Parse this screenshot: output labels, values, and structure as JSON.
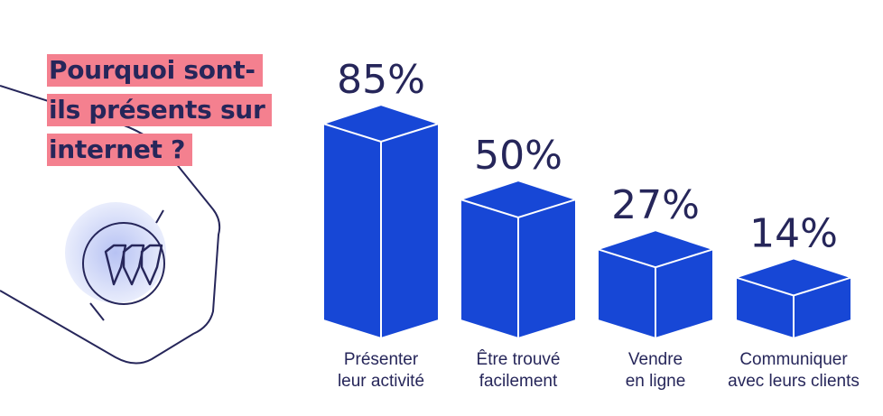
{
  "title_lines": [
    "Pourquoi sont-",
    "ils présents sur",
    "internet ?"
  ],
  "chart_data": {
    "type": "bar",
    "title": "Pourquoi sont-ils présents sur internet ?",
    "categories": [
      [
        "Présenter",
        "leur activité"
      ],
      [
        "Être trouvé",
        "facilement"
      ],
      [
        "Vendre",
        "en ligne"
      ],
      [
        "Communiquer",
        "avec leurs clients"
      ]
    ],
    "values": [
      85,
      50,
      27,
      14
    ],
    "value_labels": [
      "85%",
      "50%",
      "27%",
      "14%"
    ],
    "unit": "%",
    "ylim": [
      0,
      100
    ],
    "grid": false,
    "legend": "none"
  },
  "colors": {
    "bar_front": "#1747d6",
    "bar_edge": "#ffffff",
    "title_highlight": "#f4808f",
    "text": "#26265a"
  },
  "icons": [
    "hexagon-outline-icon",
    "logo-mark-icon"
  ]
}
